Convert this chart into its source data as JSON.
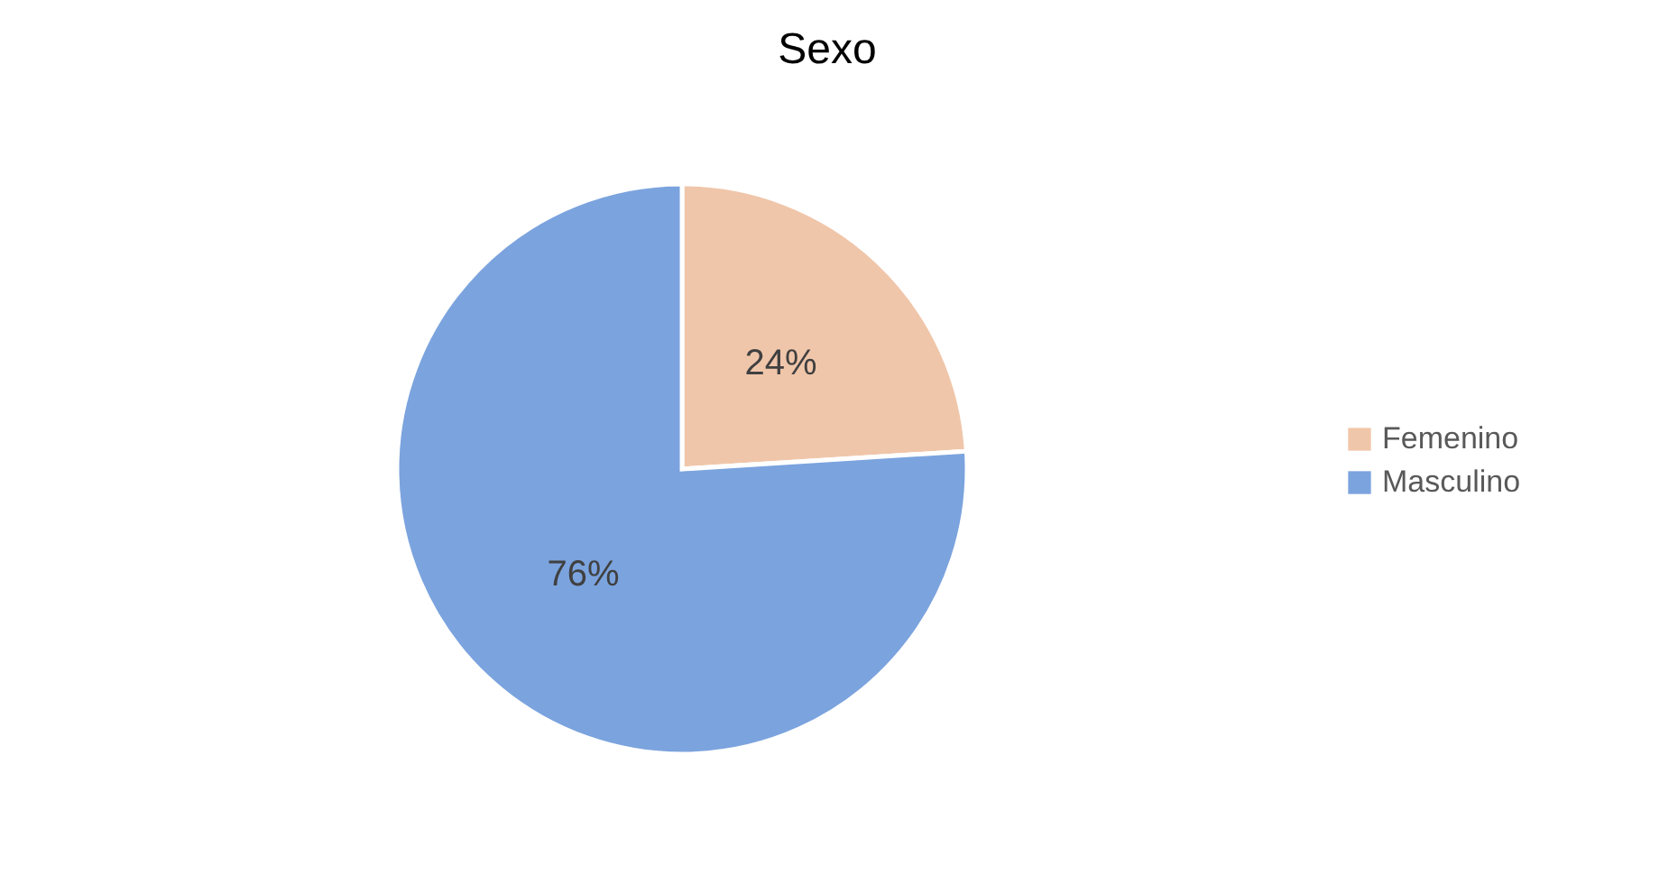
{
  "chart_data": {
    "type": "pie",
    "title": "Sexo",
    "categories": [
      "Femenino",
      "Masculino"
    ],
    "values": [
      24,
      76
    ],
    "colors": [
      "#f0c6aa",
      "#7ba3de"
    ],
    "value_labels": [
      "24%",
      "76%"
    ],
    "legend": "right"
  }
}
